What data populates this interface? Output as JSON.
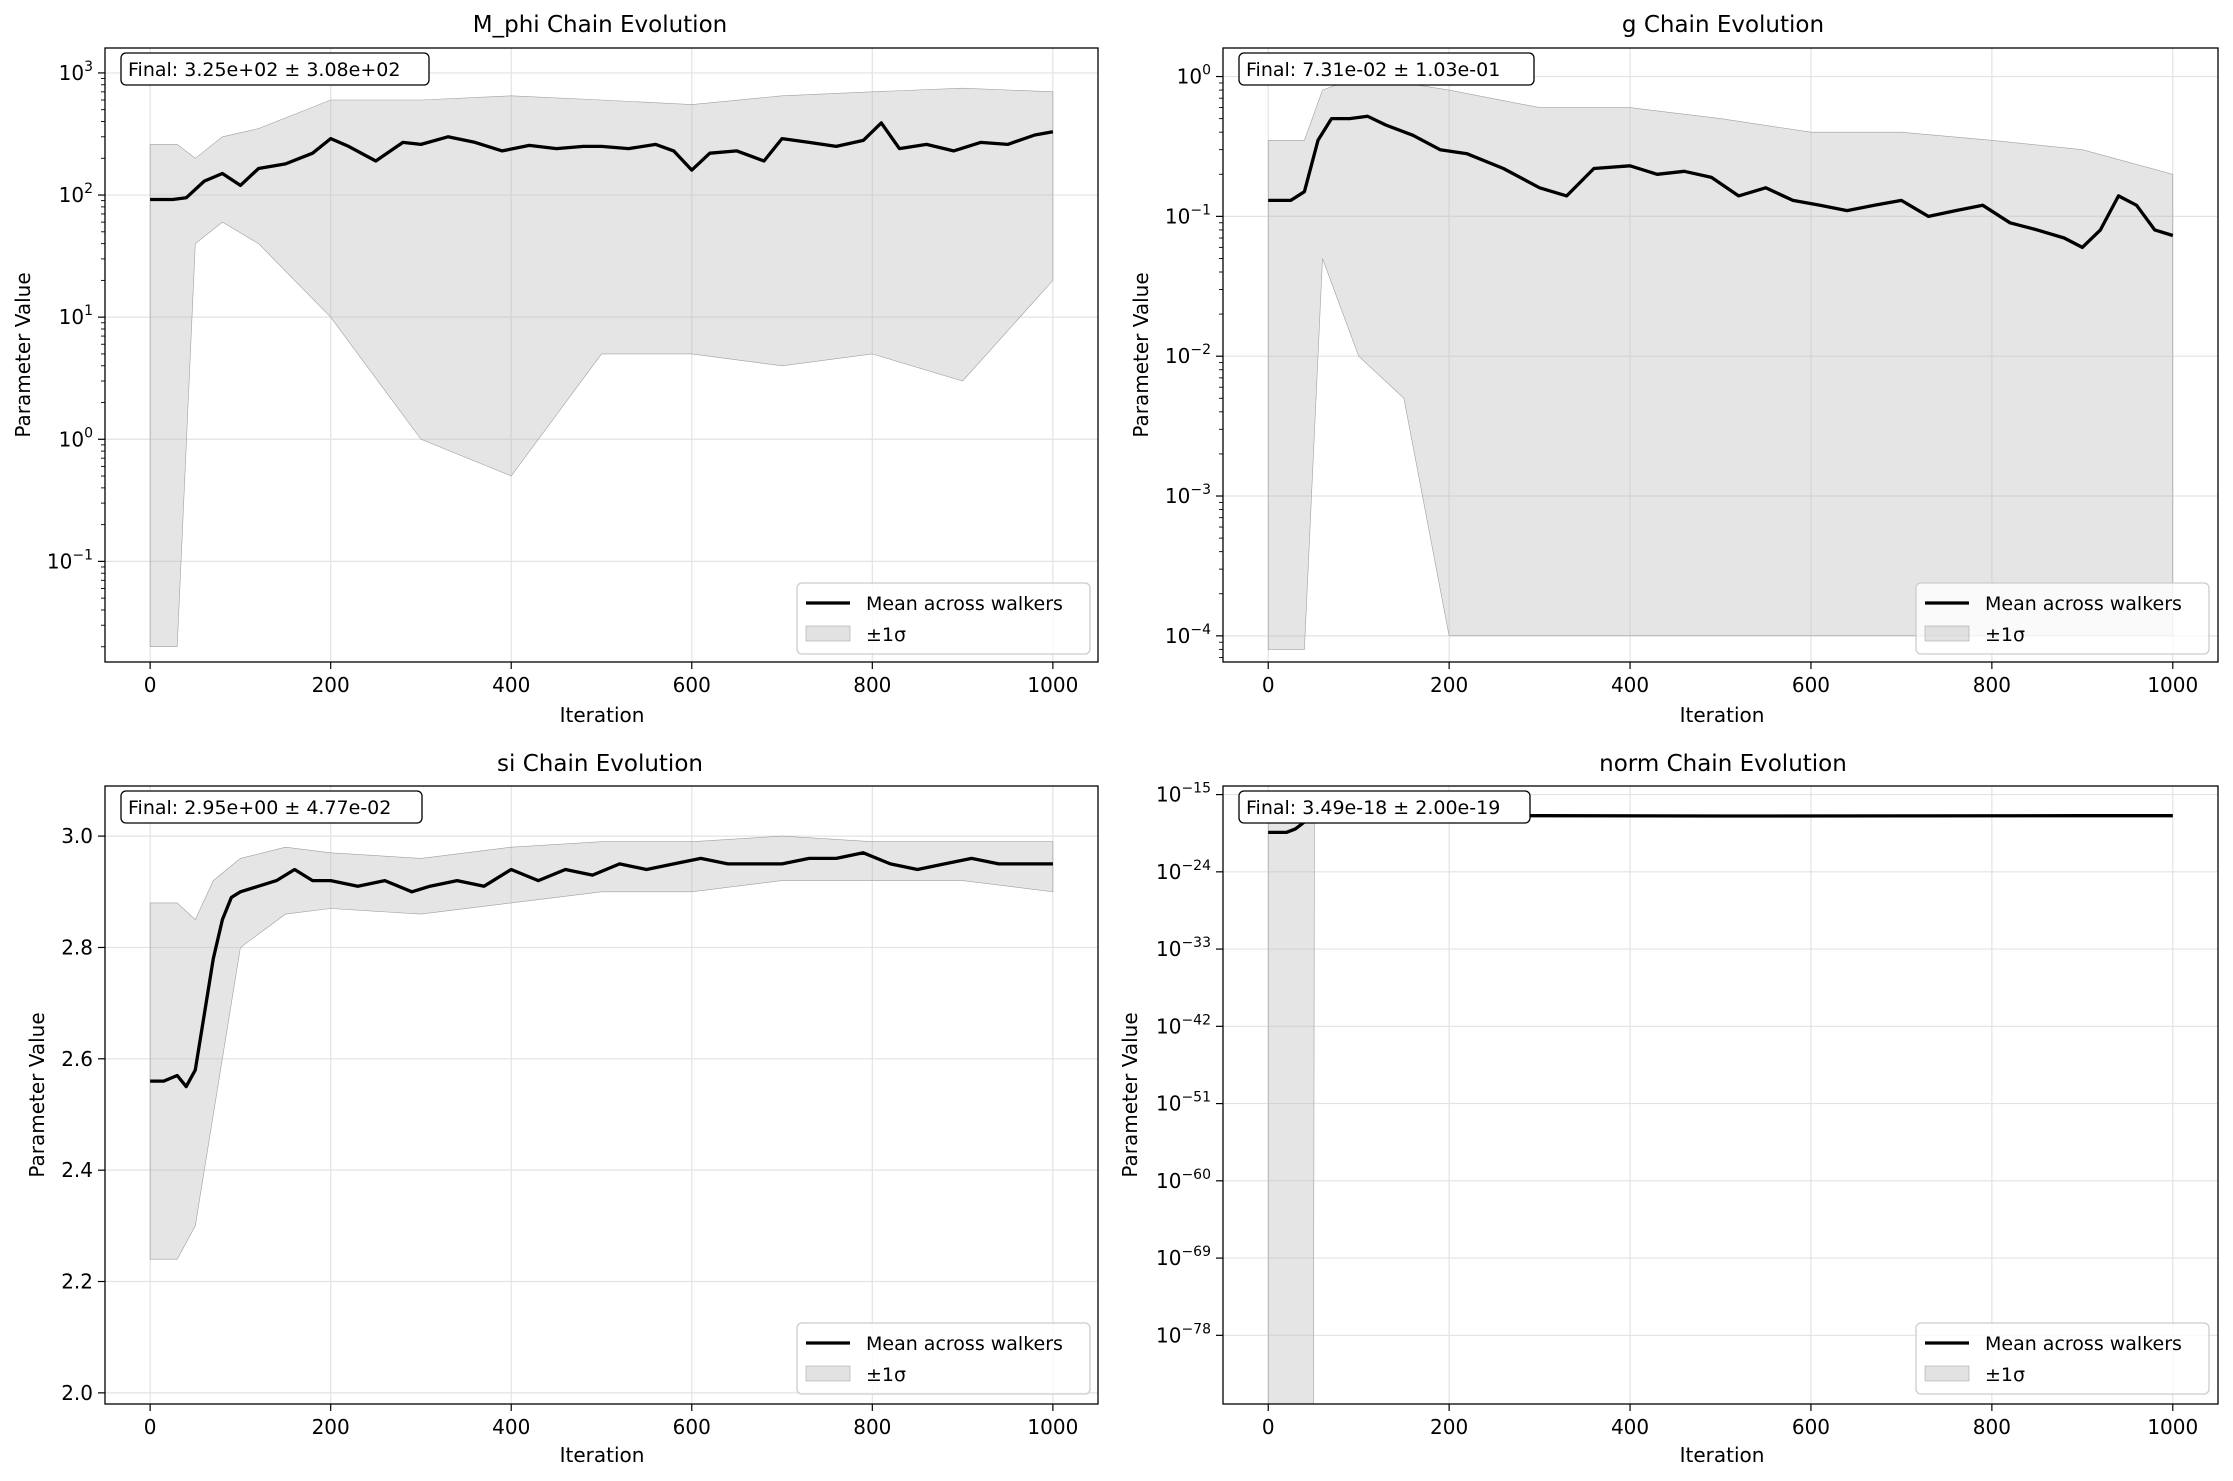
{
  "chart_data": [
    {
      "type": "line",
      "title": "M_phi Chain Evolution",
      "xlabel": "Iteration",
      "ylabel": "Parameter Value",
      "yscale": "log",
      "xlim": [
        -50,
        1050
      ],
      "ylim": [
        0.015,
        1600
      ],
      "xticks": [
        0,
        200,
        400,
        600,
        800,
        1000
      ],
      "xtick_labels": [
        "0",
        "200",
        "400",
        "600",
        "800",
        "1000"
      ],
      "yticks": [
        0.1,
        1,
        10,
        100,
        1000
      ],
      "ytick_labels": [
        {
          "base": "10",
          "exp": "−1"
        },
        {
          "base": "10",
          "exp": "0"
        },
        {
          "base": "10",
          "exp": "1"
        },
        {
          "base": "10",
          "exp": "2"
        },
        {
          "base": "10",
          "exp": "3"
        }
      ],
      "annotation": "Final: 3.25e+02 ± 3.08e+02",
      "grid": true,
      "legend_position": "lower-right",
      "legend": [
        "Mean across walkers",
        "±1σ"
      ],
      "mean_series": {
        "name": "Mean across walkers",
        "x": [
          0,
          25,
          40,
          60,
          80,
          100,
          120,
          150,
          180,
          200,
          220,
          250,
          280,
          300,
          330,
          360,
          390,
          420,
          450,
          480,
          500,
          530,
          560,
          580,
          600,
          620,
          650,
          680,
          700,
          730,
          760,
          790,
          810,
          830,
          860,
          890,
          920,
          950,
          980,
          1000
        ],
        "y": [
          92,
          92,
          95,
          130,
          150,
          120,
          165,
          180,
          220,
          290,
          250,
          190,
          270,
          260,
          300,
          270,
          230,
          255,
          240,
          250,
          250,
          240,
          260,
          230,
          160,
          220,
          230,
          190,
          290,
          270,
          250,
          280,
          390,
          240,
          260,
          230,
          270,
          260,
          310,
          330
        ]
      },
      "sigma_band": {
        "name": "±1σ",
        "x": [
          0,
          30,
          50,
          80,
          120,
          200,
          300,
          400,
          500,
          600,
          700,
          800,
          900,
          1000
        ],
        "upper": [
          260,
          260,
          200,
          300,
          350,
          600,
          600,
          650,
          600,
          550,
          650,
          700,
          750,
          700
        ],
        "lower": [
          0.02,
          0.02,
          40,
          60,
          40,
          10,
          1,
          0.5,
          5,
          5,
          4,
          5,
          3,
          20
        ]
      }
    },
    {
      "type": "line",
      "title": "g Chain Evolution",
      "xlabel": "Iteration",
      "ylabel": "Parameter Value",
      "yscale": "log",
      "xlim": [
        -50,
        1050
      ],
      "ylim": [
        6.5e-05,
        1.6
      ],
      "xticks": [
        0,
        200,
        400,
        600,
        800,
        1000
      ],
      "xtick_labels": [
        "0",
        "200",
        "400",
        "600",
        "800",
        "1000"
      ],
      "yticks": [
        0.0001,
        0.001,
        0.01,
        0.1,
        1
      ],
      "ytick_labels": [
        {
          "base": "10",
          "exp": "−4"
        },
        {
          "base": "10",
          "exp": "−3"
        },
        {
          "base": "10",
          "exp": "−2"
        },
        {
          "base": "10",
          "exp": "−1"
        },
        {
          "base": "10",
          "exp": "0"
        }
      ],
      "annotation": "Final: 7.31e-02 ± 1.03e-01",
      "grid": true,
      "legend_position": "lower-right",
      "legend": [
        "Mean across walkers",
        "±1σ"
      ],
      "mean_series": {
        "name": "Mean across walkers",
        "x": [
          0,
          25,
          40,
          55,
          70,
          90,
          110,
          130,
          160,
          190,
          220,
          260,
          300,
          330,
          360,
          400,
          430,
          460,
          490,
          520,
          550,
          580,
          610,
          640,
          670,
          700,
          730,
          760,
          790,
          820,
          850,
          880,
          900,
          920,
          940,
          960,
          980,
          1000
        ],
        "y": [
          0.13,
          0.13,
          0.15,
          0.35,
          0.5,
          0.5,
          0.52,
          0.45,
          0.38,
          0.3,
          0.28,
          0.22,
          0.16,
          0.14,
          0.22,
          0.23,
          0.2,
          0.21,
          0.19,
          0.14,
          0.16,
          0.13,
          0.12,
          0.11,
          0.12,
          0.13,
          0.1,
          0.11,
          0.12,
          0.09,
          0.08,
          0.07,
          0.06,
          0.08,
          0.14,
          0.12,
          0.08,
          0.073
        ]
      },
      "sigma_band": {
        "name": "±1σ",
        "x": [
          0,
          40,
          60,
          100,
          150,
          200,
          300,
          400,
          500,
          600,
          700,
          800,
          900,
          1000
        ],
        "upper": [
          0.35,
          0.35,
          0.8,
          1.0,
          0.9,
          0.8,
          0.6,
          0.6,
          0.5,
          0.4,
          0.4,
          0.35,
          0.3,
          0.2
        ],
        "lower": [
          8e-05,
          8e-05,
          0.05,
          0.01,
          0.005,
          0.0001,
          0.0001,
          0.0001,
          0.0001,
          0.0001,
          0.0001,
          0.0001,
          0.0001,
          0.0001
        ]
      }
    },
    {
      "type": "line",
      "title": "si Chain Evolution",
      "xlabel": "Iteration",
      "ylabel": "Parameter Value",
      "yscale": "linear",
      "xlim": [
        -50,
        1050
      ],
      "ylim": [
        1.98,
        3.09
      ],
      "xticks": [
        0,
        200,
        400,
        600,
        800,
        1000
      ],
      "xtick_labels": [
        "0",
        "200",
        "400",
        "600",
        "800",
        "1000"
      ],
      "yticks": [
        2.0,
        2.2,
        2.4,
        2.6,
        2.8,
        3.0
      ],
      "ytick_labels": [
        "2.0",
        "2.2",
        "2.4",
        "2.6",
        "2.8",
        "3.0"
      ],
      "annotation": "Final: 2.95e+00 ± 4.77e-02",
      "grid": true,
      "legend_position": "lower-right",
      "legend": [
        "Mean across walkers",
        "±1σ"
      ],
      "mean_series": {
        "name": "Mean across walkers",
        "x": [
          0,
          15,
          30,
          40,
          50,
          60,
          70,
          80,
          90,
          100,
          120,
          140,
          160,
          180,
          200,
          230,
          260,
          290,
          310,
          340,
          370,
          400,
          430,
          460,
          490,
          520,
          550,
          580,
          610,
          640,
          670,
          700,
          730,
          760,
          790,
          820,
          850,
          880,
          910,
          940,
          970,
          1000
        ],
        "y": [
          2.56,
          2.56,
          2.57,
          2.55,
          2.58,
          2.68,
          2.78,
          2.85,
          2.89,
          2.9,
          2.91,
          2.92,
          2.94,
          2.92,
          2.92,
          2.91,
          2.92,
          2.9,
          2.91,
          2.92,
          2.91,
          2.94,
          2.92,
          2.94,
          2.93,
          2.95,
          2.94,
          2.95,
          2.96,
          2.95,
          2.95,
          2.95,
          2.96,
          2.96,
          2.97,
          2.95,
          2.94,
          2.95,
          2.96,
          2.95,
          2.95,
          2.95
        ]
      },
      "sigma_band": {
        "name": "±1σ",
        "x": [
          0,
          30,
          50,
          70,
          100,
          150,
          200,
          300,
          400,
          500,
          600,
          700,
          800,
          900,
          1000
        ],
        "upper": [
          2.88,
          2.88,
          2.85,
          2.92,
          2.96,
          2.98,
          2.97,
          2.96,
          2.98,
          2.99,
          2.99,
          3.0,
          2.99,
          2.99,
          2.99
        ],
        "lower": [
          2.24,
          2.24,
          2.3,
          2.5,
          2.8,
          2.86,
          2.87,
          2.86,
          2.88,
          2.9,
          2.9,
          2.92,
          2.92,
          2.92,
          2.9
        ]
      }
    },
    {
      "type": "line",
      "title": "norm Chain Evolution",
      "xlabel": "Iteration",
      "ylabel": "Parameter Value",
      "yscale": "log",
      "xlim": [
        -50,
        1050
      ],
      "ylim": [
        "1e-86",
        "1e-14"
      ],
      "xticks": [
        0,
        200,
        400,
        600,
        800,
        1000
      ],
      "xtick_labels": [
        "0",
        "200",
        "400",
        "600",
        "800",
        "1000"
      ],
      "yticks_exp": [
        -78,
        -69,
        -60,
        -51,
        -42,
        -33,
        -24,
        -15
      ],
      "ytick_labels": [
        {
          "base": "10",
          "exp": "−78"
        },
        {
          "base": "10",
          "exp": "−69"
        },
        {
          "base": "10",
          "exp": "−60"
        },
        {
          "base": "10",
          "exp": "−51"
        },
        {
          "base": "10",
          "exp": "−42"
        },
        {
          "base": "10",
          "exp": "−33"
        },
        {
          "base": "10",
          "exp": "−24"
        },
        {
          "base": "10",
          "exp": "−15"
        }
      ],
      "annotation": "Final: 3.49e-18 ± 2.00e-19",
      "grid": true,
      "legend_position": "lower-right",
      "legend": [
        "Mean across walkers",
        "±1σ"
      ],
      "mean_series": {
        "name": "Mean across walkers",
        "x": [
          0,
          20,
          30,
          40,
          50,
          60,
          100,
          300,
          500,
          700,
          900,
          1000
        ],
        "y_exp": [
          -19.4,
          -19.4,
          -19.0,
          -18.2,
          -17.6,
          -17.5,
          -17.5,
          -17.46,
          -17.5,
          -17.48,
          -17.46,
          -17.46
        ]
      },
      "sigma_band": {
        "name": "±1σ",
        "x": [
          0,
          50,
          51,
          1000
        ],
        "upper_exp": [
          -17.6,
          -17.6,
          -17.45,
          -17.44
        ],
        "lower_exp": [
          -86,
          -86,
          -17.48,
          -17.48
        ]
      }
    }
  ]
}
